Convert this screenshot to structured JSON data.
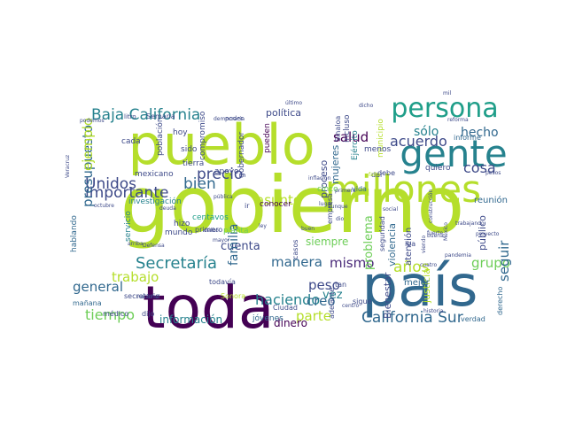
{
  "palette": {
    "dark_purple": "#440154",
    "purple": "#482878",
    "indigo": "#3e4a89",
    "steel_blue": "#31688e",
    "teal": "#26828e",
    "green_teal": "#1f9e89",
    "green": "#35b779",
    "light_green": "#6ece58",
    "lime": "#b5de2b",
    "yellow": "#fde725"
  },
  "words": [
    {
      "text": "gobierno",
      "color": "#b5de2b"
    },
    {
      "text": "país",
      "color": "#31688e"
    },
    {
      "text": "toda",
      "color": "#440154"
    },
    {
      "text": "pueblo",
      "color": "#b5de2b"
    },
    {
      "text": "millones",
      "color": "#b5de2b"
    },
    {
      "text": "gente",
      "color": "#26828e"
    },
    {
      "text": "persona",
      "color": "#1f9e89"
    },
    {
      "text": "Baja California",
      "color": "#26828e"
    },
    {
      "text": "California Sur",
      "color": "#31688e"
    },
    {
      "text": "Secretaría",
      "color": "#26828e"
    },
    {
      "text": "manera",
      "color": "#31688e"
    },
    {
      "text": "importante",
      "color": "#3e4a89"
    },
    {
      "text": "Unidos",
      "color": "#3e4a89"
    },
    {
      "text": "bien",
      "color": "#31688e"
    },
    {
      "text": "precio",
      "color": "#3e4a89"
    },
    {
      "text": "presupuesto",
      "color": "#31688e"
    },
    {
      "text": "ejemplo",
      "color": "#b5de2b"
    },
    {
      "text": "trabajo",
      "color": "#b5de2b"
    },
    {
      "text": "tiempo",
      "color": "#6ece58"
    },
    {
      "text": "general",
      "color": "#31688e"
    },
    {
      "text": "haciendo",
      "color": "#26828e"
    },
    {
      "text": "mismo",
      "color": "#482878"
    },
    {
      "text": "años",
      "color": "#b5de2b"
    },
    {
      "text": "grupo",
      "color": "#6ece58"
    },
    {
      "text": "creo",
      "color": "#31688e"
    },
    {
      "text": "parte",
      "color": "#b5de2b"
    },
    {
      "text": "peso",
      "color": "#3e4a89"
    },
    {
      "text": "vez",
      "color": "#26828e"
    },
    {
      "text": "acuerdo",
      "color": "#3e4a89"
    },
    {
      "text": "sólo",
      "color": "#26828e"
    },
    {
      "text": "hecho",
      "color": "#31688e"
    },
    {
      "text": "salud",
      "color": "#440154"
    },
    {
      "text": "cosa",
      "color": "#3e4a89"
    },
    {
      "text": "asunto",
      "color": "#b5de2b"
    },
    {
      "text": "cuenta",
      "color": "#3e4a89"
    },
    {
      "text": "familia",
      "color": "#31688e"
    },
    {
      "text": "seguir",
      "color": "#31688e"
    },
    {
      "text": "siempre",
      "color": "#6ece58"
    },
    {
      "text": "información",
      "color": "#26828e"
    },
    {
      "text": "dinero",
      "color": "#440154"
    },
    {
      "text": "política",
      "color": "#3e4a89"
    },
    {
      "text": "proceso",
      "color": "#3e4a89"
    },
    {
      "text": "mujeres",
      "color": "#31688e"
    },
    {
      "text": "público",
      "color": "#3e4a89"
    },
    {
      "text": "problema",
      "color": "#6ece58"
    },
    {
      "text": "violencia",
      "color": "#31688e"
    },
    {
      "text": "Bienestar",
      "color": "#3e4a89"
    },
    {
      "text": "justicia",
      "color": "#b5de2b"
    },
    {
      "text": "reunión",
      "color": "#31688e"
    },
    {
      "text": "mejor",
      "color": "#31688e"
    },
    {
      "text": "atención",
      "color": "#3e4a89"
    },
    {
      "text": "hablando",
      "color": "#31688e"
    },
    {
      "text": "investigación",
      "color": "#26828e"
    },
    {
      "text": "centavos",
      "color": "#1f9e89"
    },
    {
      "text": "mexicano",
      "color": "#3e4a89"
    },
    {
      "text": "tierra",
      "color": "#3e4a89"
    },
    {
      "text": "apoyo",
      "color": "#3e4a89"
    },
    {
      "text": "servicio",
      "color": "#26828e"
    },
    {
      "text": "mundo",
      "color": "#3e4a89"
    },
    {
      "text": "hizo",
      "color": "#3e4a89"
    },
    {
      "text": "cada",
      "color": "#3e4a89"
    },
    {
      "text": "hoy",
      "color": "#3e4a89"
    },
    {
      "text": "sido",
      "color": "#3e4a89"
    },
    {
      "text": "población",
      "color": "#3e4a89"
    },
    {
      "text": "compromiso",
      "color": "#3e4a89"
    },
    {
      "text": "gobernador",
      "color": "#3e4a89"
    },
    {
      "text": "pueden",
      "color": "#440154"
    },
    {
      "text": "Ejército",
      "color": "#26828e"
    },
    {
      "text": "municipio",
      "color": "#b5de2b"
    },
    {
      "text": "incluso",
      "color": "#3e4a89"
    },
    {
      "text": "menos",
      "color": "#3e4a89"
    },
    {
      "text": "informe",
      "color": "#31688e"
    },
    {
      "text": "quiero",
      "color": "#3e4a89"
    },
    {
      "text": "debe",
      "color": "#3e4a89"
    },
    {
      "text": "vida",
      "color": "#31688e"
    },
    {
      "text": "cinco",
      "color": "#6ece58"
    },
    {
      "text": "casos",
      "color": "#3e4a89"
    },
    {
      "text": "Sinaloa",
      "color": "#3e4a89"
    },
    {
      "text": "empresa",
      "color": "#3e4a89"
    },
    {
      "text": "primero",
      "color": "#3e4a89"
    },
    {
      "text": "conocer",
      "color": "#440154"
    },
    {
      "text": "planta",
      "color": "#6ece58"
    },
    {
      "text": "jóvenes",
      "color": "#31688e"
    },
    {
      "text": "médico",
      "color": "#3e4a89"
    },
    {
      "text": "mañana",
      "color": "#31688e"
    },
    {
      "text": "dijo",
      "color": "#3e4a89"
    },
    {
      "text": "secretario",
      "color": "#3e4a89"
    },
    {
      "text": "todavía",
      "color": "#3e4a89"
    },
    {
      "text": "Sonora",
      "color": "#b5de2b"
    },
    {
      "text": "Ciudad",
      "color": "#3e4a89"
    },
    {
      "text": "sigue",
      "color": "#3e4a89"
    },
    {
      "text": "verdad",
      "color": "#31688e"
    },
    {
      "text": "derecho",
      "color": "#31688e"
    },
    {
      "text": "seguridad",
      "color": "#3e4a89"
    },
    {
      "text": "poder",
      "color": "#3e4a89"
    },
    {
      "text": "Semana",
      "color": "#3e4a89"
    },
    {
      "text": "litro",
      "color": "#3e4a89"
    },
    {
      "text": "iba",
      "color": "#3e4a89"
    },
    {
      "text": "adelante",
      "color": "#3e4a89"
    },
    {
      "text": "ir",
      "color": "#3e4a89"
    },
    {
      "text": "tan",
      "color": "#3e4a89"
    },
    {
      "text": "dar",
      "color": "#3e4a89"
    },
    {
      "text": "buen",
      "color": "#3e4a89"
    },
    {
      "text": "dio",
      "color": "#3e4a89"
    },
    {
      "text": "último",
      "color": "#3e4a89"
    },
    {
      "text": "dicho",
      "color": "#3e4a89"
    },
    {
      "text": "mil",
      "color": "#3e4a89"
    },
    {
      "text": "inflación",
      "color": "#3e4a89"
    },
    {
      "text": "primera",
      "color": "#3e4a89"
    },
    {
      "text": "lugar",
      "color": "#3e4a89"
    },
    {
      "text": "falta",
      "color": "#b5de2b"
    },
    {
      "text": "Defensa",
      "color": "#3e4a89"
    },
    {
      "text": "delito",
      "color": "#3e4a89"
    },
    {
      "text": "mayor",
      "color": "#3e4a89"
    },
    {
      "text": "arriba",
      "color": "#3e4a89"
    },
    {
      "text": "nacional",
      "color": "#3e4a89"
    },
    {
      "text": "historia",
      "color": "#3e4a89"
    },
    {
      "text": "centro",
      "color": "#3e4a89"
    },
    {
      "text": "aunque",
      "color": "#3e4a89"
    },
    {
      "text": "social",
      "color": "#3e4a89"
    },
    {
      "text": "México",
      "color": "#3e4a89"
    },
    {
      "text": "pesos",
      "color": "#3e4a89"
    },
    {
      "text": "Veracruz",
      "color": "#3e4a89"
    },
    {
      "text": "octubre",
      "color": "#3e4a89"
    },
    {
      "text": "podemos",
      "color": "#3e4a89"
    },
    {
      "text": "ley",
      "color": "#3e4a89"
    },
    {
      "text": "pública",
      "color": "#3e4a89"
    },
    {
      "text": "trabajando",
      "color": "#3e4a89"
    },
    {
      "text": "proyecto",
      "color": "#3e4a89"
    },
    {
      "text": "fuerte",
      "color": "#3e4a89"
    },
    {
      "text": "buena",
      "color": "#3e4a89"
    },
    {
      "text": "construcción",
      "color": "#3e4a89"
    },
    {
      "text": "democracia",
      "color": "#3e4a89"
    },
    {
      "text": "reforma",
      "color": "#3e4a89"
    },
    {
      "text": "cuatro",
      "color": "#3e4a89"
    },
    {
      "text": "deuda",
      "color": "#3e4a89"
    },
    {
      "text": "viendo",
      "color": "#3e4a89"
    },
    {
      "text": "pandemia",
      "color": "#3e4a89"
    }
  ]
}
